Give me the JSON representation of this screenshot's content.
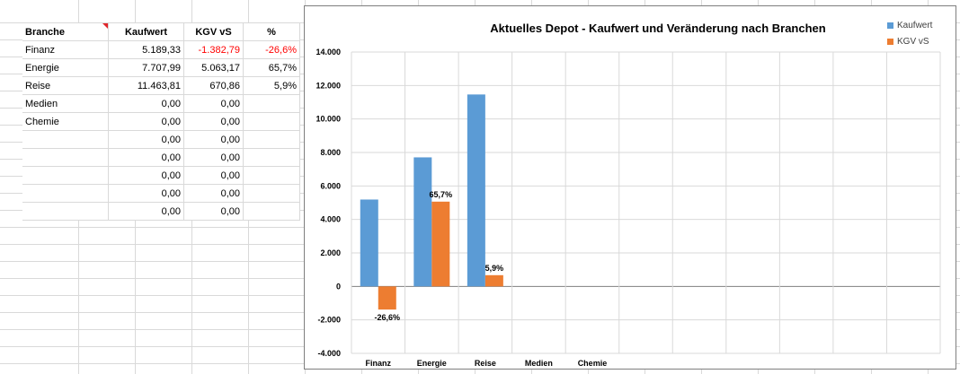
{
  "sheet": {
    "headers": [
      "Branche",
      "Kaufwert",
      "KGV vS",
      "%"
    ],
    "rows": [
      [
        "Finanz",
        "5.189,33",
        "-1.382,79",
        "-26,6%"
      ],
      [
        "Energie",
        "7.707,99",
        "5.063,17",
        "65,7%"
      ],
      [
        "Reise",
        "11.463,81",
        "670,86",
        "5,9%"
      ],
      [
        "Medien",
        "0,00",
        "0,00",
        ""
      ],
      [
        "Chemie",
        "0,00",
        "0,00",
        ""
      ],
      [
        "",
        "0,00",
        "0,00",
        ""
      ],
      [
        "",
        "0,00",
        "0,00",
        ""
      ],
      [
        "",
        "0,00",
        "0,00",
        ""
      ],
      [
        "",
        "0,00",
        "0,00",
        ""
      ],
      [
        "",
        "0,00",
        "0,00",
        ""
      ]
    ],
    "negative_color": "#ff0000"
  },
  "chart_data": {
    "type": "bar",
    "title": "Aktuelles Depot - Kaufwert und Veränderung nach Branchen",
    "categories": [
      "Finanz",
      "Energie",
      "Reise",
      "Medien",
      "Chemie",
      "",
      "",
      "",
      "",
      "",
      ""
    ],
    "series": [
      {
        "name": "Kaufwert",
        "color": "#5b9bd5",
        "values": [
          5189.33,
          7707.99,
          11463.81,
          0,
          0,
          0,
          0,
          0,
          0,
          0,
          0
        ],
        "data_labels": [
          "",
          "",
          "",
          "",
          "",
          "",
          "",
          "",
          "",
          "",
          ""
        ]
      },
      {
        "name": "KGV vS",
        "color": "#ed7d31",
        "values": [
          -1382.79,
          5063.17,
          670.86,
          0,
          0,
          0,
          0,
          0,
          0,
          0,
          0
        ],
        "data_labels": [
          "-26,6%",
          "65,7%",
          "5,9%",
          "",
          "",
          "",
          "",
          "",
          "",
          "",
          ""
        ]
      }
    ],
    "ylim": [
      -4000,
      14000
    ],
    "yticks": [
      14000,
      12000,
      10000,
      8000,
      6000,
      4000,
      2000,
      0,
      -2000,
      -4000
    ],
    "ytick_labels": [
      "14.000",
      "12.000",
      "10.000",
      "8.000",
      "6.000",
      "4.000",
      "2.000",
      "0",
      "-2.000",
      "-4.000"
    ],
    "grid": true,
    "legend_position": "top-right"
  }
}
